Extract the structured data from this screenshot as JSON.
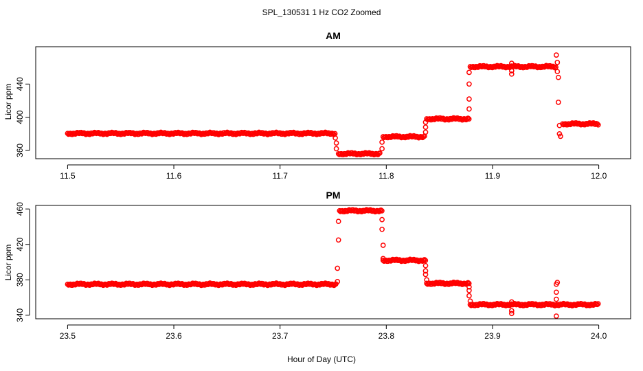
{
  "figure_title": "SPL_130531  1 Hz CO2 Zoomed",
  "shared_xlabel": "Hour of Day (UTC)",
  "colors": {
    "points": "#ff0000",
    "axes": "#000000",
    "background": "#ffffff"
  },
  "chart_data": [
    {
      "type": "scatter",
      "title": "AM",
      "xlabel": "",
      "ylabel": "Licor ppm",
      "xlim": [
        11.47,
        12.03
      ],
      "ylim": [
        350,
        485
      ],
      "xticks": [
        11.5,
        11.6,
        11.7,
        11.8,
        11.9,
        12.0
      ],
      "xtick_labels": [
        "11.5",
        "11.6",
        "11.7",
        "11.8",
        "11.9",
        "12.0"
      ],
      "yticks": [
        360,
        400,
        440
      ],
      "ytick_labels": [
        "360",
        "400",
        "440"
      ],
      "grid": false,
      "segments": [
        {
          "x_start": 11.5,
          "x_end": 11.752,
          "y": 380.5
        },
        {
          "x_start": 11.755,
          "x_end": 11.794,
          "y": 356
        },
        {
          "x_start": 11.797,
          "x_end": 11.836,
          "y": 376.5
        },
        {
          "x_start": 11.838,
          "x_end": 11.878,
          "y": 398
        },
        {
          "x_start": 11.879,
          "x_end": 11.96,
          "y": 461
        },
        {
          "x_start": 11.966,
          "x_end": 12.0,
          "y": 392
        }
      ],
      "transition_points": [
        {
          "x": 11.752,
          "y": 375
        },
        {
          "x": 11.753,
          "y": 369
        },
        {
          "x": 11.753,
          "y": 362
        },
        {
          "x": 11.796,
          "x2": 0,
          "y": 370
        },
        {
          "x": 11.796,
          "y": 362
        },
        {
          "x": 11.837,
          "y": 382
        },
        {
          "x": 11.837,
          "y": 388
        },
        {
          "x": 11.837,
          "y": 394
        },
        {
          "x": 11.878,
          "y": 410
        },
        {
          "x": 11.878,
          "y": 422
        },
        {
          "x": 11.878,
          "y": 440
        },
        {
          "x": 11.878,
          "y": 454
        },
        {
          "x": 11.918,
          "y": 452
        },
        {
          "x": 11.918,
          "y": 456
        },
        {
          "x": 11.918,
          "y": 465
        },
        {
          "x": 11.96,
          "y": 475
        },
        {
          "x": 11.961,
          "y": 466
        },
        {
          "x": 11.961,
          "y": 455
        },
        {
          "x": 11.962,
          "y": 448
        },
        {
          "x": 11.962,
          "y": 418
        },
        {
          "x": 11.963,
          "y": 390
        },
        {
          "x": 11.963,
          "y": 380
        },
        {
          "x": 11.964,
          "y": 377
        }
      ]
    },
    {
      "type": "scatter",
      "title": "PM",
      "xlabel": "Hour of Day (UTC)",
      "ylabel": "Licor ppm",
      "xlim": [
        23.47,
        24.03
      ],
      "ylim": [
        336,
        464
      ],
      "xticks": [
        23.5,
        23.6,
        23.7,
        23.8,
        23.9,
        24.0
      ],
      "xtick_labels": [
        "23.5",
        "23.6",
        "23.7",
        "23.8",
        "23.9",
        "24.0"
      ],
      "yticks": [
        340,
        380,
        420,
        460
      ],
      "ytick_labels": [
        "340",
        "380",
        "420",
        "460"
      ],
      "grid": false,
      "segments": [
        {
          "x_start": 23.5,
          "x_end": 23.753,
          "y": 375
        },
        {
          "x_start": 23.756,
          "x_end": 23.796,
          "y": 458
        },
        {
          "x_start": 23.797,
          "x_end": 23.837,
          "y": 402
        },
        {
          "x_start": 23.838,
          "x_end": 23.878,
          "y": 376
        },
        {
          "x_start": 23.879,
          "x_end": 24.0,
          "y": 352
        }
      ],
      "transition_points": [
        {
          "x": 23.754,
          "y": 378
        },
        {
          "x": 23.754,
          "y": 393
        },
        {
          "x": 23.755,
          "y": 425
        },
        {
          "x": 23.755,
          "y": 446
        },
        {
          "x": 23.796,
          "y": 448
        },
        {
          "x": 23.796,
          "y": 437
        },
        {
          "x": 23.797,
          "y": 419
        },
        {
          "x": 23.797,
          "y": 404
        },
        {
          "x": 23.837,
          "y": 396
        },
        {
          "x": 23.837,
          "y": 390
        },
        {
          "x": 23.837,
          "y": 386
        },
        {
          "x": 23.838,
          "y": 380
        },
        {
          "x": 23.878,
          "y": 372
        },
        {
          "x": 23.878,
          "y": 368
        },
        {
          "x": 23.878,
          "y": 362
        },
        {
          "x": 23.879,
          "y": 356
        },
        {
          "x": 23.918,
          "y": 342
        },
        {
          "x": 23.918,
          "y": 355
        },
        {
          "x": 23.918,
          "y": 345
        },
        {
          "x": 23.96,
          "y": 339
        },
        {
          "x": 23.96,
          "y": 366
        },
        {
          "x": 23.96,
          "y": 375
        },
        {
          "x": 23.961,
          "y": 377
        },
        {
          "x": 23.96,
          "y": 358
        }
      ]
    }
  ]
}
